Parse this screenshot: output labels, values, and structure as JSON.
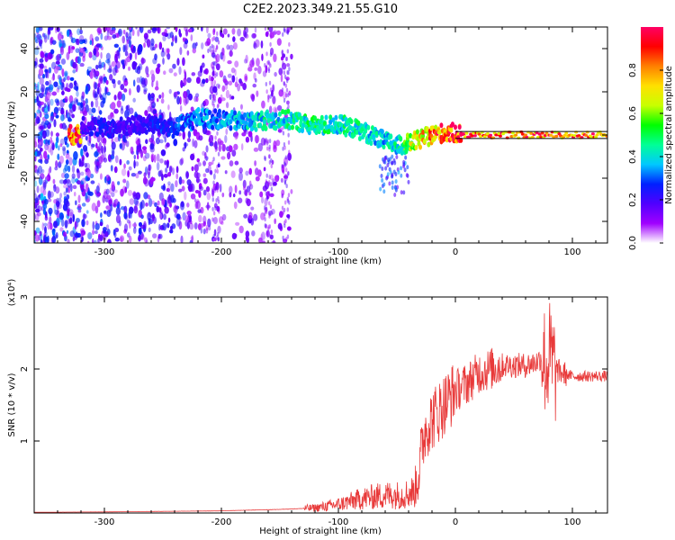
{
  "title": "C2E2.2023.349.21.55.G10",
  "colorbar": {
    "label": "Normalized spectral amplitude",
    "ticks": [
      "0.0",
      "0.2",
      "0.4",
      "0.6",
      "0.8"
    ],
    "tick_values": [
      0.0,
      0.2,
      0.4,
      0.6,
      0.8
    ],
    "range": [
      0,
      1
    ],
    "colormap": [
      "#ffffff",
      "#a000ff",
      "#5000ff",
      "#0020ff",
      "#00c8ff",
      "#00ff96",
      "#00ff00",
      "#c8ff00",
      "#ffe000",
      "#ff8000",
      "#ff0000",
      "#ff0064"
    ]
  },
  "chart_data": [
    {
      "type": "heatmap",
      "xlabel": "Height of straight line (km)",
      "ylabel": "Frequency (Hz)",
      "xlim": [
        -360,
        130
      ],
      "ylim": [
        -50,
        50
      ],
      "xticks": [
        -300,
        -200,
        -100,
        0,
        100
      ],
      "xtick_labels": [
        "-300",
        "-200",
        "-100",
        "0",
        "100"
      ],
      "yticks": [
        -40,
        -20,
        0,
        20,
        40
      ],
      "ytick_labels": [
        "-40",
        "-20",
        "0",
        "20",
        "40"
      ],
      "ridge": {
        "description_values": "dominant-frequency track (x km, y Hz)",
        "x": [
          -320,
          -300,
          -280,
          -260,
          -240,
          -220,
          -200,
          -180,
          -160,
          -140,
          -120,
          -100,
          -80,
          -60,
          -50,
          -40,
          -30,
          -20,
          -10,
          0,
          10,
          50,
          100,
          130
        ],
        "y": [
          5,
          3,
          4,
          5,
          3,
          8,
          7,
          6,
          7,
          7,
          4,
          5,
          2,
          -3,
          -5,
          -4,
          -2,
          0,
          1,
          1,
          0,
          0,
          0,
          0
        ],
        "amplitude": [
          0.2,
          0.25,
          0.2,
          0.25,
          0.3,
          0.35,
          0.35,
          0.4,
          0.45,
          0.45,
          0.5,
          0.45,
          0.45,
          0.4,
          0.45,
          0.6,
          0.8,
          0.85,
          0.9,
          0.95,
          0.95,
          0.9,
          0.9,
          0.9
        ]
      },
      "grid": false
    },
    {
      "type": "line",
      "xlabel": "Height of straight line (km)",
      "ylabel": "SNR (10 * v/v)",
      "y_multiplier": "(x10⁴)",
      "xlim": [
        -360,
        130
      ],
      "ylim": [
        0,
        30000
      ],
      "xticks": [
        -300,
        -200,
        -100,
        0,
        100
      ],
      "xtick_labels": [
        "-300",
        "-200",
        "-100",
        "0",
        "100"
      ],
      "yticks": [
        10000,
        20000,
        30000
      ],
      "ytick_labels": [
        "1",
        "2",
        "3"
      ],
      "color": "#e83a3a",
      "series": [
        {
          "x": [
            -360,
            -300,
            -200,
            -150,
            -120,
            -100,
            -80,
            -60,
            -45,
            -35,
            -30,
            -28,
            -25,
            -20,
            -10,
            0,
            10,
            20,
            30,
            40,
            50,
            60,
            70,
            75,
            78,
            80,
            85,
            90,
            100,
            110,
            120,
            130
          ],
          "y": [
            100,
            150,
            300,
            500,
            700,
            1200,
            2000,
            2500,
            2500,
            3000,
            7000,
            10000,
            12000,
            13000,
            15000,
            17000,
            18000,
            19500,
            20000,
            20500,
            20500,
            20500,
            21000,
            22000,
            20000,
            22000,
            20000,
            19500,
            19000,
            19000,
            19000,
            19000
          ]
        }
      ],
      "grid": false
    }
  ]
}
